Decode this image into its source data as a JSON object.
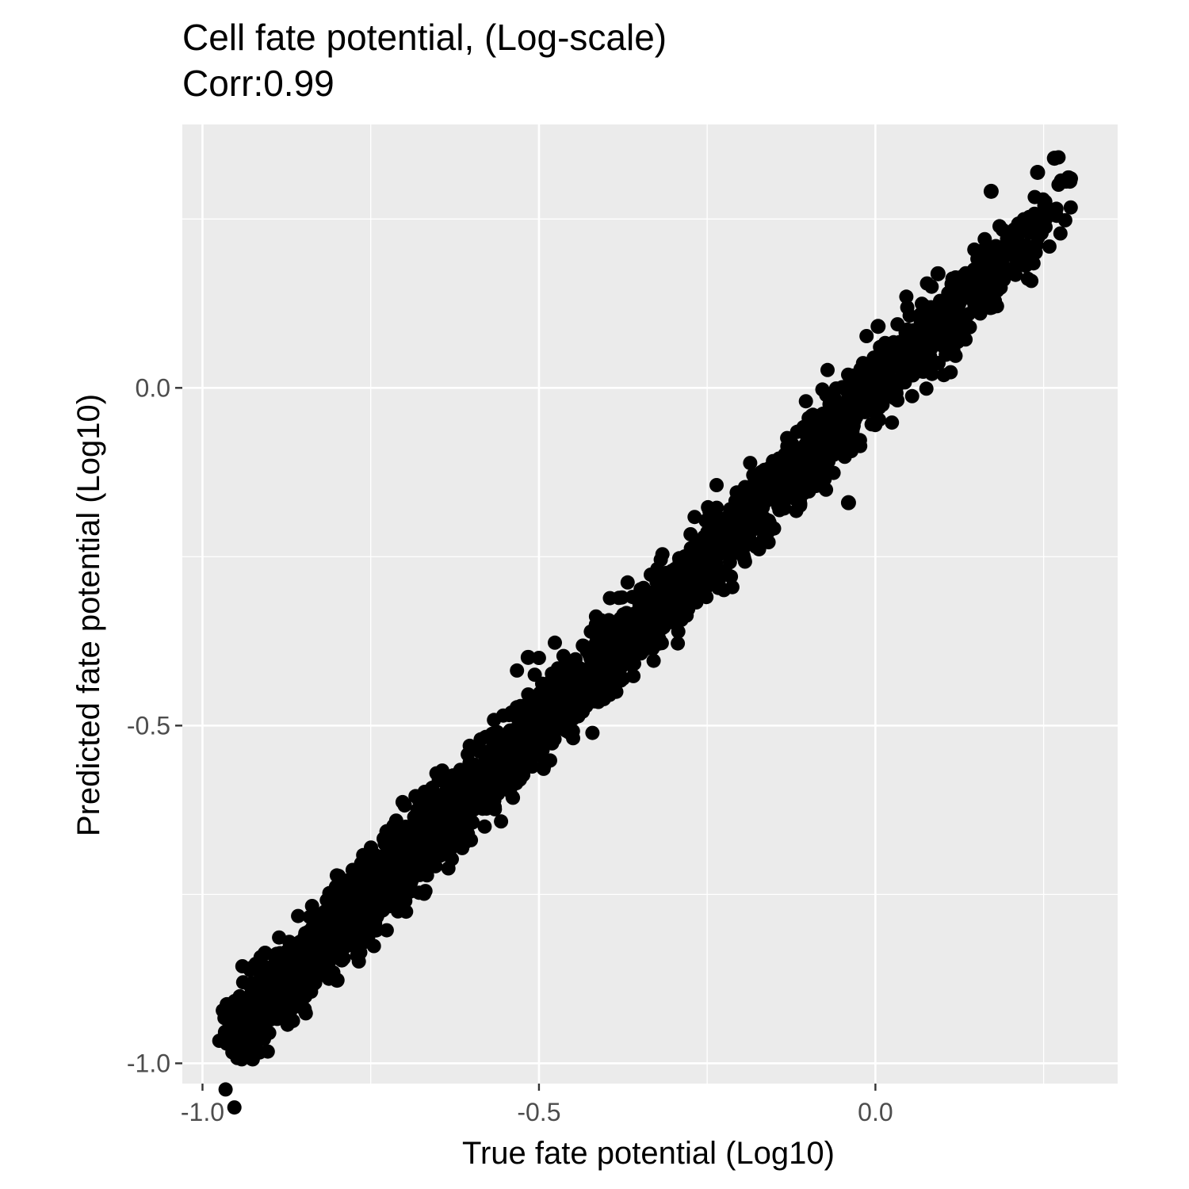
{
  "chart_data": {
    "type": "scatter",
    "title": "Cell fate potential, (Log-scale)",
    "subtitle": "Corr:0.99",
    "xlabel": "True fate potential (Log10)",
    "ylabel": "Predicted fate potential (Log10)",
    "xlim": [
      -1.03,
      0.36
    ],
    "ylim": [
      -1.03,
      0.39
    ],
    "x_ticks": [
      -1.0,
      -0.5,
      0.0
    ],
    "x_tick_labels": [
      "-1.0",
      "-0.5",
      "0.0"
    ],
    "y_ticks": [
      -1.0,
      -0.5,
      0.0
    ],
    "y_tick_labels": [
      "-1.0",
      "-0.5",
      "0.0"
    ],
    "grid": true,
    "legend": "none",
    "colors": {
      "panel": "#EBEBEB",
      "grid": "#FFFFFF",
      "point": "#000000",
      "axis_text": "#4D4D4D",
      "tick": "#333333"
    },
    "trend": {
      "slope": 1.0,
      "intercept": 0.0,
      "spread": 0.03,
      "x_range": [
        -0.96,
        0.3
      ],
      "n_points": 3000
    },
    "highlighted_points": [
      {
        "x": -0.966,
        "y": -0.954
      },
      {
        "x": -0.958,
        "y": -0.918
      },
      {
        "x": -0.926,
        "y": -0.901
      },
      {
        "x": -0.895,
        "y": -0.916
      },
      {
        "x": -0.906,
        "y": -0.868
      },
      {
        "x": -0.907,
        "y": -0.837
      },
      {
        "x": -0.847,
        "y": -0.872
      },
      {
        "x": -0.8,
        "y": -0.877
      },
      {
        "x": -0.793,
        "y": -0.847
      },
      {
        "x": -0.793,
        "y": -0.755
      },
      {
        "x": -0.754,
        "y": -0.734
      },
      {
        "x": -0.734,
        "y": -0.717
      },
      {
        "x": -0.726,
        "y": -0.657
      },
      {
        "x": -0.568,
        "y": -0.532
      },
      {
        "x": -0.516,
        "y": -0.399
      },
      {
        "x": -0.457,
        "y": -0.494
      },
      {
        "x": -0.404,
        "y": -0.421
      },
      {
        "x": -0.37,
        "y": -0.334
      },
      {
        "x": -0.297,
        "y": -0.321
      },
      {
        "x": -0.208,
        "y": -0.21
      },
      {
        "x": -0.136,
        "y": -0.178
      },
      {
        "x": -0.078,
        "y": -0.039
      },
      {
        "x": -0.04,
        "y": -0.17
      },
      {
        "x": 0.004,
        "y": 0.091
      },
      {
        "x": 0.093,
        "y": 0.169
      },
      {
        "x": 0.172,
        "y": 0.291
      },
      {
        "x": 0.241,
        "y": 0.319
      },
      {
        "x": 0.266,
        "y": 0.34
      },
      {
        "x": 0.287,
        "y": 0.311
      },
      {
        "x": 0.289,
        "y": 0.306
      }
    ]
  }
}
